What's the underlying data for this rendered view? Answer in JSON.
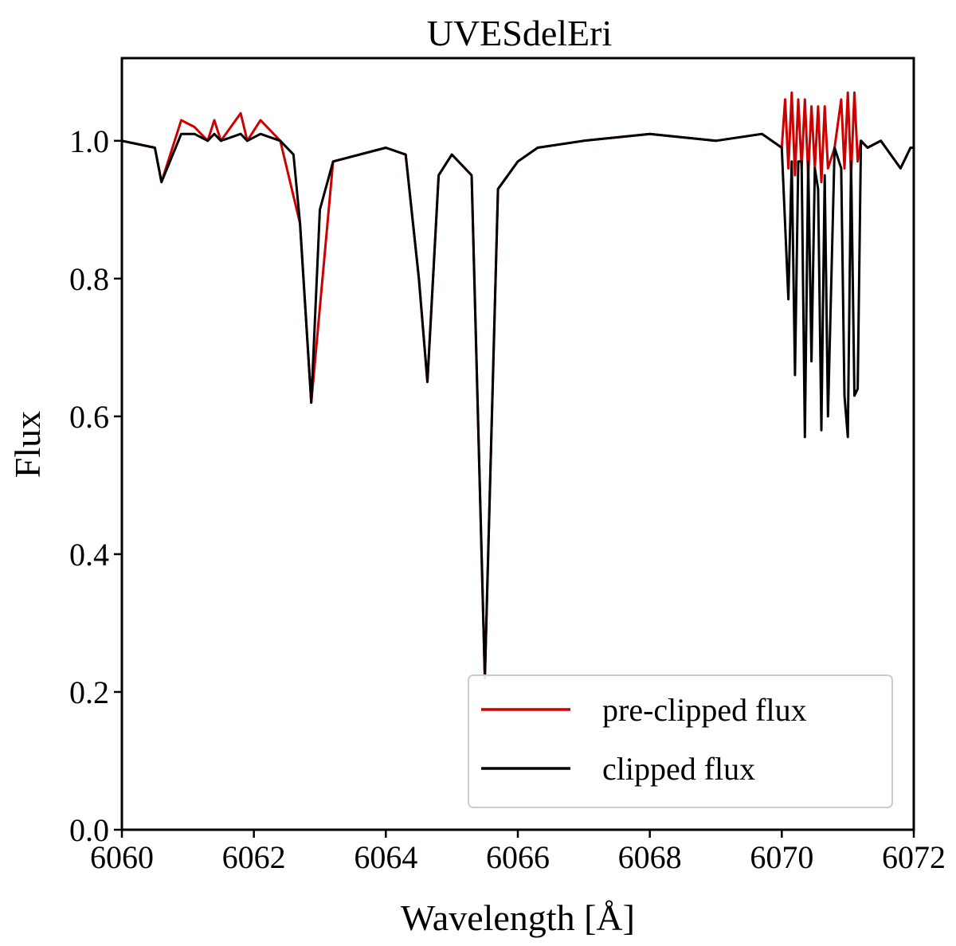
{
  "chart_data": {
    "type": "line",
    "title": "UVESdelEri",
    "xlabel": "Wavelength [Å]",
    "ylabel": "Flux",
    "xlim": [
      6060,
      6072
    ],
    "ylim": [
      0.0,
      1.12
    ],
    "grid": false,
    "x_ticks": [
      6060,
      6062,
      6064,
      6066,
      6068,
      6070,
      6072
    ],
    "x_tick_labels": [
      "6060",
      "6062",
      "6064",
      "6066",
      "6068",
      "6070",
      "6072"
    ],
    "y_ticks": [
      0.0,
      0.2,
      0.4,
      0.6,
      0.8,
      1.0
    ],
    "y_tick_labels": [
      "0.0",
      "0.2",
      "0.4",
      "0.6",
      "0.8",
      "1.0"
    ],
    "legend_position": "lower-right",
    "series": [
      {
        "name": "pre-clipped flux",
        "color": "#cc0000",
        "x": [
          6060.0,
          6060.5,
          6060.6,
          6060.9,
          6061.1,
          6061.3,
          6061.4,
          6061.5,
          6061.8,
          6061.9,
          6062.1,
          6062.4,
          6062.7,
          6062.87,
          6063.2,
          6064.0,
          6064.3,
          6064.5,
          6064.63,
          6064.8,
          6065.0,
          6065.3,
          6065.5,
          6065.7,
          6066.0,
          6066.3,
          6067.0,
          6068.0,
          6069.0,
          6069.7,
          6070.0,
          6070.05,
          6070.1,
          6070.15,
          6070.2,
          6070.25,
          6070.3,
          6070.35,
          6070.4,
          6070.45,
          6070.5,
          6070.55,
          6070.6,
          6070.65,
          6070.7,
          6070.8,
          6070.9,
          6070.95,
          6071.0,
          6071.05,
          6071.1,
          6071.15,
          6071.2,
          6071.3,
          6071.5,
          6071.8,
          6071.95,
          6072.0
        ],
        "y": [
          1.0,
          0.99,
          0.94,
          1.03,
          1.02,
          1.0,
          1.03,
          1.0,
          1.04,
          1.0,
          1.03,
          1.0,
          0.88,
          0.62,
          0.97,
          0.99,
          0.98,
          0.8,
          0.65,
          0.95,
          0.98,
          0.95,
          0.22,
          0.93,
          0.97,
          0.99,
          1.0,
          1.01,
          1.0,
          1.01,
          0.99,
          1.06,
          0.96,
          1.07,
          0.95,
          1.06,
          0.96,
          1.06,
          0.95,
          1.05,
          0.96,
          1.05,
          0.94,
          1.05,
          0.96,
          0.99,
          1.06,
          0.96,
          1.07,
          0.95,
          1.07,
          0.97,
          1.0,
          0.99,
          1.0,
          0.96,
          0.99,
          0.99
        ]
      },
      {
        "name": "clipped flux",
        "color": "#000000",
        "x": [
          6060.0,
          6060.5,
          6060.6,
          6060.9,
          6061.1,
          6061.3,
          6061.4,
          6061.5,
          6061.8,
          6061.9,
          6062.1,
          6062.4,
          6062.6,
          6062.7,
          6062.87,
          6063.0,
          6063.2,
          6064.0,
          6064.3,
          6064.5,
          6064.63,
          6064.8,
          6065.0,
          6065.3,
          6065.5,
          6065.7,
          6066.0,
          6066.3,
          6067.0,
          6068.0,
          6069.0,
          6069.7,
          6070.0,
          6070.1,
          6070.15,
          6070.2,
          6070.25,
          6070.3,
          6070.35,
          6070.4,
          6070.45,
          6070.5,
          6070.55,
          6070.6,
          6070.65,
          6070.7,
          6070.8,
          6070.9,
          6070.95,
          6071.0,
          6071.05,
          6071.1,
          6071.15,
          6071.2,
          6071.3,
          6071.5,
          6071.8,
          6071.95,
          6072.0
        ],
        "y": [
          1.0,
          0.99,
          0.94,
          1.01,
          1.01,
          1.0,
          1.01,
          1.0,
          1.01,
          1.0,
          1.01,
          1.0,
          0.98,
          0.88,
          0.62,
          0.9,
          0.97,
          0.99,
          0.98,
          0.8,
          0.65,
          0.95,
          0.98,
          0.95,
          0.22,
          0.93,
          0.97,
          0.99,
          1.0,
          1.01,
          1.0,
          1.01,
          0.99,
          0.77,
          0.97,
          0.66,
          0.97,
          0.97,
          0.57,
          0.97,
          0.68,
          0.96,
          0.93,
          0.58,
          0.95,
          0.6,
          0.99,
          0.96,
          0.63,
          0.57,
          0.97,
          0.63,
          0.64,
          1.0,
          0.99,
          1.0,
          0.96,
          0.99,
          0.99
        ]
      }
    ]
  }
}
